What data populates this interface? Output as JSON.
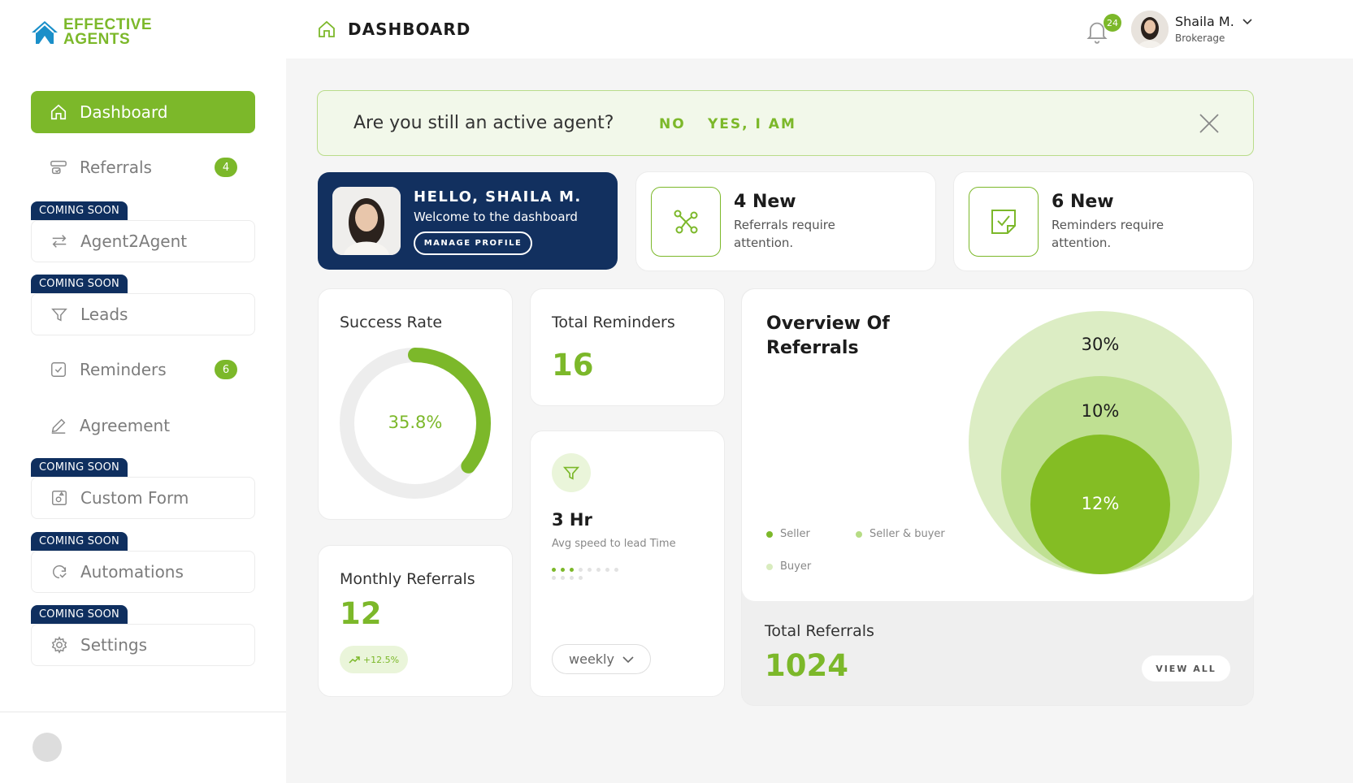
{
  "brand": {
    "line1": "EFFECTIVE",
    "line2": "AGENTS",
    "accent": "#7cb82a",
    "navy": "#0f2f5f"
  },
  "header": {
    "title": "DASHBOARD",
    "notifications": "24",
    "user_name": "Shaila M.",
    "user_role": "Brokerage"
  },
  "sidebar": {
    "coming_soon_label": "COMING SOON",
    "items": [
      {
        "label": "Dashboard",
        "icon": "home-icon",
        "active": true
      },
      {
        "label": "Referrals",
        "icon": "referrals-icon",
        "badge": "4"
      },
      {
        "label": "Agent2Agent",
        "icon": "swap-icon",
        "coming_soon": true
      },
      {
        "label": "Leads",
        "icon": "funnel-icon",
        "coming_soon": true
      },
      {
        "label": "Reminders",
        "icon": "reminder-icon",
        "badge": "6"
      },
      {
        "label": "Agreement",
        "icon": "pen-icon"
      },
      {
        "label": "Custom Form",
        "icon": "form-icon",
        "coming_soon": true
      },
      {
        "label": "Automations",
        "icon": "automation-icon",
        "coming_soon": true
      },
      {
        "label": "Settings",
        "icon": "gear-icon",
        "coming_soon": true
      }
    ]
  },
  "banner": {
    "question": "Are you still an active agent?",
    "no": "NO",
    "yes": "YES, I AM"
  },
  "hello": {
    "title": "HELLO, SHAILA M.",
    "subtitle": "Welcome to the dashboard",
    "button": "MANAGE PROFILE"
  },
  "stats": [
    {
      "big": "4 New",
      "desc": "Referrals require attention.",
      "icon": "network-icon"
    },
    {
      "big": "6 New",
      "desc": "Reminders require attention.",
      "icon": "checked-note-icon"
    }
  ],
  "success": {
    "title": "Success Rate",
    "value": "35.8%",
    "fraction": 0.358
  },
  "monthly": {
    "title": "Monthly Referrals",
    "value": "12",
    "trend": "+12.5%"
  },
  "total_reminders": {
    "title": "Total Reminders",
    "value": "16"
  },
  "speed": {
    "value": "3 Hr",
    "subtitle": "Avg speed to lead Time",
    "period": "weekly"
  },
  "overview": {
    "title": "Overview Of Referrals",
    "legend": [
      {
        "label": "Seller",
        "color": "#7cb82a"
      },
      {
        "label": "Seller & buyer",
        "color": "#b6dc84"
      },
      {
        "label": "Buyer",
        "color": "#d9ecbf"
      }
    ],
    "bubbles": [
      {
        "label": "30%",
        "color": "#dcedc4"
      },
      {
        "label": "10%",
        "color": "#bfe092"
      },
      {
        "label": "12%",
        "color": "#84bd24"
      }
    ],
    "total_title": "Total Referrals",
    "total_value": "1024",
    "view_all": "VIEW ALL"
  }
}
